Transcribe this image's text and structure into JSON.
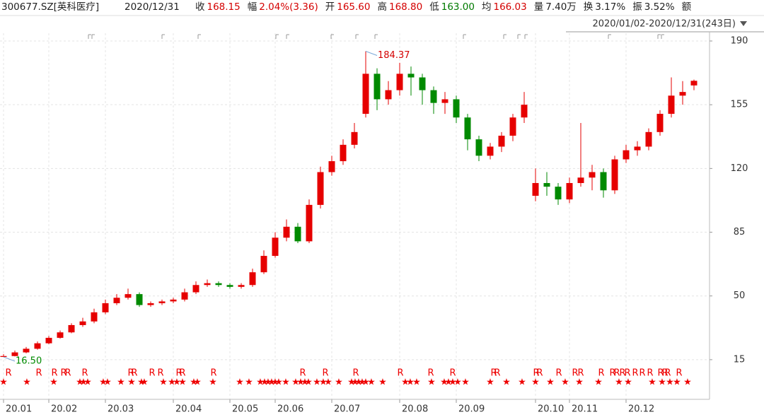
{
  "header": {
    "symbol": "300677.SZ[英科医疗]",
    "date": "2020/12/31",
    "fields": [
      {
        "label": "收",
        "value": "168.15",
        "color": "#d40000"
      },
      {
        "label": "幅",
        "value": "2.04%(3.36)",
        "color": "#d40000"
      },
      {
        "label": "开",
        "value": "165.60",
        "color": "#d40000"
      },
      {
        "label": "高",
        "value": "168.80",
        "color": "#d40000"
      },
      {
        "label": "低",
        "value": "163.00",
        "color": "#007a00"
      },
      {
        "label": "均",
        "value": "166.03",
        "color": "#d40000"
      },
      {
        "label": "量",
        "value": "7.40万",
        "color": "#222222"
      },
      {
        "label": "换",
        "value": "3.17%",
        "color": "#222222"
      },
      {
        "label": "振",
        "value": "3.52%",
        "color": "#222222"
      },
      {
        "label": "额",
        "value": null,
        "color": "#222222"
      }
    ],
    "range": "2020/01/02-2020/12/31(243日)"
  },
  "chart_data": {
    "type": "candlestick",
    "categories": [
      "20.01",
      null,
      null,
      null,
      "20.02",
      null,
      null,
      null,
      null,
      "20.03",
      null,
      null,
      null,
      null,
      null,
      "20.04",
      null,
      null,
      null,
      null,
      "20.05",
      null,
      null,
      null,
      "20.06",
      null,
      null,
      null,
      null,
      "20.07",
      null,
      null,
      null,
      null,
      null,
      "20.08",
      null,
      null,
      null,
      null,
      "20.09",
      null,
      null,
      null,
      null,
      null,
      null,
      "20.10",
      null,
      null,
      "20.11",
      null,
      null,
      null,
      null,
      "20.12",
      null,
      null,
      null,
      null,
      null,
      null
    ],
    "open": [
      16.5,
      17,
      19,
      21,
      24,
      27,
      30,
      34,
      36,
      41,
      46,
      49,
      51,
      45,
      46,
      47,
      48,
      52,
      56,
      57,
      56,
      55,
      56,
      63,
      72,
      82,
      88,
      80,
      100,
      118,
      124,
      133,
      150,
      172,
      158,
      163,
      172,
      170,
      163,
      156,
      158,
      148,
      136,
      127,
      132,
      138,
      148,
      105,
      112,
      110,
      103,
      112,
      115,
      118,
      108,
      125,
      130,
      132,
      140,
      150,
      160,
      165.6
    ],
    "high": [
      18,
      20,
      22,
      25,
      28,
      31,
      35,
      38,
      43,
      48,
      51,
      54,
      52,
      47,
      48,
      49,
      54,
      58,
      59,
      58,
      57,
      57,
      65,
      75,
      85,
      92,
      90,
      103,
      121,
      127,
      136,
      145,
      184.37,
      175,
      168,
      178,
      176,
      172,
      165,
      162,
      160,
      150,
      138,
      134,
      140,
      150,
      162,
      120,
      118,
      112,
      115,
      145,
      122,
      120,
      127,
      133,
      135,
      142,
      152,
      170,
      168,
      168.8
    ],
    "low": [
      16.5,
      16.8,
      18.5,
      20.5,
      23.5,
      26.5,
      29.5,
      33,
      35,
      40,
      45,
      48,
      44,
      44,
      45,
      46,
      47,
      51,
      55,
      55,
      54,
      54,
      55,
      62,
      71,
      80,
      79,
      79,
      98,
      116,
      122,
      131,
      148,
      152,
      155,
      160,
      160,
      155,
      150,
      150,
      145,
      130,
      124,
      125,
      129,
      135,
      145,
      102,
      105,
      100,
      101,
      110,
      108,
      104,
      106,
      123,
      127,
      130,
      138,
      148,
      155,
      163
    ],
    "close": [
      17,
      19,
      21,
      24,
      27,
      30,
      34,
      36,
      41,
      46,
      49,
      51,
      45,
      46,
      47,
      48,
      52,
      56,
      57,
      56,
      55,
      56,
      63,
      72,
      82,
      88,
      80,
      100,
      118,
      124,
      133,
      140,
      172,
      158,
      163,
      172,
      170,
      163,
      156,
      158,
      148,
      136,
      127,
      132,
      138,
      148,
      155,
      112,
      110,
      103,
      112,
      115,
      118,
      108,
      125,
      130,
      132,
      140,
      150,
      160,
      162,
      168.15
    ],
    "up_color": "#e60000",
    "down_color": "#008a00",
    "ylim": [
      -6,
      194
    ],
    "yticks": [
      15,
      50,
      85,
      120,
      155,
      190
    ],
    "grid": true,
    "annotations": [
      {
        "text": "184.37",
        "index": 32,
        "color": "#d40000"
      },
      {
        "text": "16.50",
        "index": 0,
        "color": "#008a00"
      }
    ]
  }
}
